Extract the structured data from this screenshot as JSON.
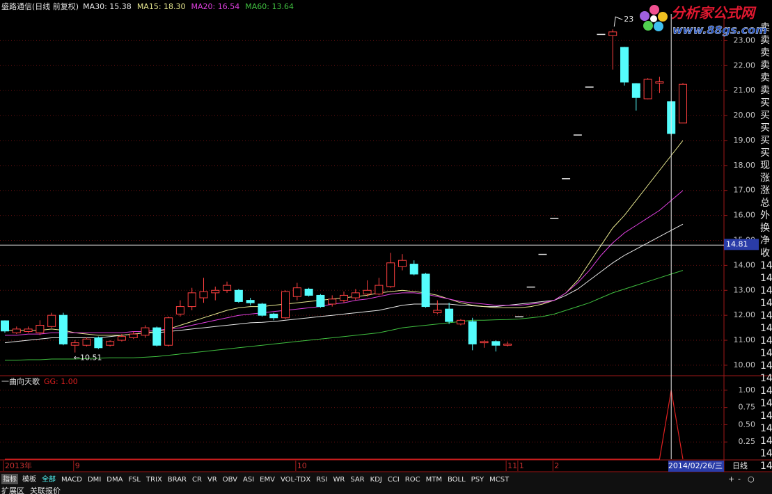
{
  "chart_data": [
    {
      "type": "candlestick",
      "title": "盛路通信(日线 前复权)",
      "categories": [
        "2013年",
        null,
        null,
        null,
        null,
        null,
        "9",
        null,
        null,
        null,
        null,
        null,
        null,
        null,
        null,
        null,
        null,
        null,
        null,
        null,
        null,
        null,
        null,
        null,
        null,
        "10",
        null,
        null,
        null,
        null,
        null,
        null,
        null,
        null,
        null,
        null,
        null,
        null,
        null,
        null,
        null,
        null,
        null,
        "11",
        "1",
        null,
        null,
        "2",
        null,
        null,
        null,
        null,
        null,
        null,
        null,
        null,
        null,
        null,
        null
      ],
      "open": [
        11.78,
        11.3,
        11.35,
        11.3,
        11.55,
        12.0,
        10.8,
        10.8,
        11.1,
        10.8,
        11.0,
        11.1,
        11.2,
        11.5,
        10.8,
        12.05,
        12.35,
        12.7,
        12.9,
        13.0,
        13.0,
        12.6,
        12.45,
        12.05,
        11.9,
        12.75,
        13.05,
        12.8,
        12.45,
        12.6,
        12.7,
        12.85,
        12.85,
        13.15,
        13.95,
        14.05,
        13.65,
        12.1,
        12.25,
        11.65,
        11.75,
        10.9,
        10.95,
        10.8,
        11.94,
        13.13,
        14.44,
        15.88,
        17.47,
        19.22,
        21.14,
        23.25,
        23.2,
        22.73,
        21.28,
        20.67,
        21.3,
        20.56,
        19.7
      ],
      "high": [
        11.8,
        11.55,
        11.55,
        11.8,
        12.1,
        12.1,
        11.0,
        11.1,
        11.15,
        11.0,
        11.25,
        11.35,
        11.6,
        11.55,
        11.95,
        12.6,
        13.1,
        13.5,
        13.15,
        13.35,
        13.05,
        12.7,
        12.5,
        12.1,
        13.0,
        13.3,
        13.1,
        12.85,
        12.8,
        12.95,
        13.05,
        13.4,
        13.5,
        14.5,
        14.45,
        14.2,
        13.7,
        12.6,
        12.5,
        11.85,
        11.9,
        11.0,
        11.0,
        10.95,
        11.94,
        13.13,
        14.44,
        15.88,
        17.47,
        19.22,
        21.14,
        23.25,
        23.45,
        22.75,
        21.3,
        21.5,
        21.55,
        20.6,
        21.3
      ],
      "low": [
        11.3,
        11.25,
        11.3,
        11.2,
        11.5,
        10.8,
        10.51,
        10.75,
        10.65,
        10.75,
        10.95,
        11.05,
        11.1,
        10.75,
        10.75,
        11.95,
        12.2,
        12.5,
        12.6,
        12.9,
        12.5,
        12.4,
        11.95,
        11.8,
        11.85,
        12.6,
        12.75,
        12.3,
        12.35,
        12.5,
        12.6,
        12.75,
        12.8,
        13.1,
        13.8,
        13.6,
        12.3,
        12.05,
        11.65,
        11.6,
        10.6,
        10.7,
        10.55,
        10.75,
        11.94,
        13.13,
        14.44,
        15.88,
        17.47,
        19.22,
        21.14,
        23.25,
        21.84,
        21.2,
        20.2,
        20.65,
        20.9,
        19.2,
        19.7
      ],
      "close": [
        11.37,
        11.45,
        11.45,
        11.6,
        12.0,
        10.85,
        10.9,
        11.05,
        10.7,
        10.95,
        11.15,
        11.25,
        11.5,
        10.8,
        11.9,
        12.35,
        12.9,
        12.95,
        13.0,
        13.2,
        12.55,
        12.5,
        12.0,
        11.9,
        12.95,
        13.1,
        12.8,
        12.35,
        12.65,
        12.8,
        12.9,
        13.0,
        13.2,
        14.1,
        14.2,
        13.65,
        12.35,
        12.2,
        11.75,
        11.8,
        10.85,
        10.95,
        10.8,
        10.85,
        11.94,
        13.13,
        14.44,
        15.88,
        17.47,
        19.22,
        21.14,
        23.25,
        23.35,
        21.34,
        20.72,
        21.45,
        21.35,
        19.28,
        21.25
      ],
      "up_color": "#ff4040",
      "down_color": "#54fcfc",
      "flat_color": "#e8e8e8",
      "ma_series": [
        {
          "name": "MA30: 15.38",
          "color": "#e8e8e8",
          "values": [
            10.9,
            10.95,
            11.0,
            11.05,
            11.1,
            11.1,
            11.1,
            11.1,
            11.1,
            11.15,
            11.2,
            11.25,
            11.3,
            11.3,
            11.35,
            11.4,
            11.45,
            11.5,
            11.55,
            11.6,
            11.65,
            11.7,
            11.72,
            11.75,
            11.8,
            11.85,
            11.9,
            11.95,
            12.0,
            12.05,
            12.1,
            12.15,
            12.2,
            12.3,
            12.4,
            12.45,
            12.45,
            12.45,
            12.45,
            12.4,
            12.38,
            12.35,
            12.35,
            12.4,
            12.45,
            12.5,
            12.55,
            12.6,
            12.8,
            13.05,
            13.4,
            13.75,
            14.1,
            14.4,
            14.65,
            14.9,
            15.15,
            15.4,
            15.65
          ]
        },
        {
          "name": "MA15: 18.30",
          "color": "#e8e890",
          "values": [
            11.4,
            11.4,
            11.4,
            11.4,
            11.45,
            11.4,
            11.3,
            11.25,
            11.2,
            11.2,
            11.2,
            11.25,
            11.3,
            11.35,
            11.45,
            11.6,
            11.75,
            11.9,
            12.05,
            12.2,
            12.3,
            12.35,
            12.35,
            12.4,
            12.45,
            12.5,
            12.55,
            12.6,
            12.65,
            12.7,
            12.75,
            12.8,
            12.9,
            12.95,
            13.0,
            12.95,
            12.9,
            12.8,
            12.65,
            12.5,
            12.4,
            12.35,
            12.3,
            12.3,
            12.3,
            12.35,
            12.45,
            12.6,
            12.9,
            13.4,
            14.1,
            14.8,
            15.5,
            16.0,
            16.6,
            17.2,
            17.8,
            18.4,
            19.0
          ]
        },
        {
          "name": "MA20: 16.54",
          "color": "#e040e0",
          "values": [
            11.2,
            11.2,
            11.25,
            11.25,
            11.3,
            11.3,
            11.3,
            11.3,
            11.3,
            11.3,
            11.3,
            11.35,
            11.35,
            11.4,
            11.45,
            11.5,
            11.6,
            11.7,
            11.8,
            11.9,
            12.0,
            12.05,
            12.1,
            12.15,
            12.2,
            12.25,
            12.3,
            12.35,
            12.45,
            12.5,
            12.6,
            12.65,
            12.75,
            12.85,
            12.9,
            12.9,
            12.85,
            12.75,
            12.65,
            12.55,
            12.5,
            12.45,
            12.4,
            12.4,
            12.4,
            12.45,
            12.5,
            12.6,
            12.9,
            13.3,
            13.8,
            14.4,
            14.9,
            15.3,
            15.6,
            15.9,
            16.2,
            16.6,
            17.0
          ]
        },
        {
          "name": "MA60: 13.64",
          "color": "#40c040",
          "values": [
            10.2,
            10.2,
            10.22,
            10.22,
            10.25,
            10.25,
            10.25,
            10.27,
            10.28,
            10.3,
            10.3,
            10.3,
            10.32,
            10.35,
            10.4,
            10.45,
            10.5,
            10.55,
            10.6,
            10.65,
            10.7,
            10.75,
            10.8,
            10.85,
            10.9,
            10.95,
            11.0,
            11.05,
            11.1,
            11.15,
            11.2,
            11.25,
            11.3,
            11.4,
            11.5,
            11.55,
            11.6,
            11.65,
            11.7,
            11.75,
            11.8,
            11.8,
            11.82,
            11.83,
            11.85,
            11.9,
            11.95,
            12.05,
            12.2,
            12.35,
            12.5,
            12.7,
            12.9,
            13.05,
            13.2,
            13.35,
            13.5,
            13.65,
            13.8
          ]
        }
      ],
      "high_label": "23",
      "low_label": "←10.51",
      "cursor_price": 14.81,
      "cursor_index": 57,
      "cursor_date": "2014/02/26/三",
      "ylim": [
        9.58,
        24.07
      ],
      "yticks": [
        {
          "value": 10,
          "label": "10.00"
        },
        {
          "value": 11,
          "label": "11.00"
        },
        {
          "value": 12,
          "label": "12.00"
        },
        {
          "value": 13,
          "label": "13.00"
        },
        {
          "value": 14,
          "label": "14.00"
        },
        {
          "value": 15,
          "label": "15.00"
        },
        {
          "value": 16,
          "label": "16.00"
        },
        {
          "value": 17,
          "label": "17.00"
        },
        {
          "value": 18,
          "label": "18.00"
        },
        {
          "value": 19,
          "label": "19.00"
        },
        {
          "value": 20,
          "label": "20.00"
        },
        {
          "value": 21,
          "label": "21.00"
        },
        {
          "value": 22,
          "label": "22.00"
        },
        {
          "value": 23,
          "label": "23.00"
        }
      ],
      "grid": true
    },
    {
      "type": "line",
      "title": "一曲向天歌",
      "series": [
        {
          "name": "GG: 1.00",
          "color": "#e02020",
          "values": [
            0,
            0,
            0,
            0,
            0,
            0,
            0,
            0,
            0,
            0,
            0,
            0,
            0,
            0,
            0,
            0,
            0,
            0,
            0,
            0,
            0,
            0,
            0,
            0,
            0,
            0,
            0,
            0,
            0,
            0,
            0,
            0,
            0,
            0,
            0,
            0,
            0,
            0,
            0,
            0,
            0,
            0,
            0,
            0,
            0,
            0,
            0,
            0,
            0,
            0,
            0,
            0,
            0,
            0,
            0,
            0,
            0,
            1,
            0
          ]
        }
      ],
      "ylim": [
        0,
        1.2
      ],
      "yticks": [
        {
          "value": 0.25,
          "label": "0.25"
        },
        {
          "value": 0.5,
          "label": "0.50"
        },
        {
          "value": 0.75,
          "label": "0.75"
        },
        {
          "value": 1,
          "label": "1.00"
        }
      ],
      "grid": true
    }
  ],
  "ui": {
    "period": "日线",
    "logo": {
      "name": "分析家公式网",
      "url": "www.88gs.com"
    },
    "tabs": [
      "指标",
      "模板",
      "全部",
      "MACD",
      "DMI",
      "DMA",
      "FSL",
      "TRIX",
      "BRAR",
      "CR",
      "VR",
      "OBV",
      "ASI",
      "EMV",
      "VOL-TDX",
      "RSI",
      "WR",
      "SAR",
      "KDJ",
      "CCI",
      "ROC",
      "MTM",
      "BOLL",
      "PSY",
      "MCST"
    ],
    "buttons": [
      "+",
      "-",
      "○"
    ],
    "bottom_tabs": [
      "扩展区",
      "关联报价"
    ],
    "side_panel": [
      "卖",
      "卖",
      "卖",
      "卖",
      "卖",
      "卖",
      "买",
      "买",
      "买",
      "买",
      "买",
      "现",
      "涨",
      "涨",
      "总",
      "外",
      "换",
      "净",
      "收",
      "14",
      "14",
      "14",
      "14",
      "14",
      "14",
      "14",
      "14",
      "14",
      "14",
      "14",
      "14",
      "14",
      "14",
      "14",
      "14",
      "14"
    ]
  }
}
